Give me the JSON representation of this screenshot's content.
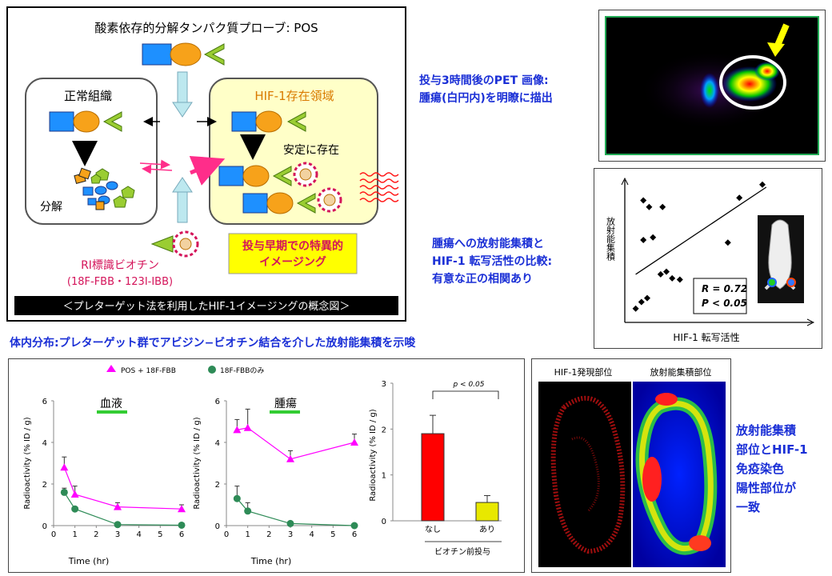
{
  "concept": {
    "probe_title": "酸素依存的分解タンパク質プローブ: POS",
    "normal_tissue": "正常組織",
    "hif_region": "HIF-1存在領域",
    "stable": "安定に存在",
    "degradation": "分解",
    "ri_label_line1": "RI標識ビオチン",
    "ri_label_line2": "(18F-FBB・123I-IBB)",
    "early_imaging_line1": "投与早期での特異的",
    "early_imaging_line2": "イメージング",
    "banner": "＜プレターゲット法を利用したHIF-1イメージングの概念図＞"
  },
  "pet_caption": [
    "投与3時間後のPET 画像:",
    "腫瘍(白円内)を明瞭に描出"
  ],
  "correlation_caption": [
    "腫瘍への放射能集積と",
    "HIF-1 転写活性の比較:",
    "有意な正の相関あり"
  ],
  "biodist_heading": "体内分布:プレターゲット群でアビジン−ビオチン結合を介した放射能集積を示唆",
  "staining_caption": [
    "放射能集積",
    "部位とHIF-1",
    "免疫染色",
    "陽性部位が",
    "一致"
  ],
  "staining_labels": {
    "left": "HIF-1発現部位",
    "right": "放射能集積部位"
  },
  "colors": {
    "magenta": "#ff00ff",
    "green": "#2e8b57",
    "accent_blue": "#1a2fd6",
    "banner_yellow": "#ffff00"
  },
  "chart_data": [
    {
      "type": "scatter",
      "xlabel": "HIF-1 転写活性",
      "ylabel": "放射能集積",
      "x": [
        0.04,
        0.07,
        0.1,
        0.08,
        0.13,
        0.17,
        0.2,
        0.23,
        0.27,
        0.08,
        0.11,
        0.18,
        0.52,
        0.58,
        0.7
      ],
      "y": [
        0.08,
        0.13,
        0.16,
        0.6,
        0.62,
        0.34,
        0.36,
        0.31,
        0.3,
        0.9,
        0.85,
        0.85,
        0.58,
        0.92,
        1.02
      ],
      "fit_line": [
        [
          0.04,
          0.34
        ],
        [
          0.72,
          1.0
        ]
      ],
      "stats": [
        "R = 0.72",
        "P < 0.05"
      ]
    },
    {
      "type": "line",
      "title": "血液",
      "xlabel": "Time (hr)",
      "ylabel": "Radioactivity (% ID / g)",
      "xlim": [
        0,
        6
      ],
      "ylim": [
        0,
        6
      ],
      "xticks": [
        "0",
        "1",
        "2",
        "3",
        "4",
        "5",
        "6"
      ],
      "yticks": [
        "0",
        "2",
        "4",
        "6"
      ],
      "series": [
        {
          "name": "POS + 18F-FBB",
          "x": [
            0.5,
            1,
            3,
            6
          ],
          "values": [
            2.8,
            1.5,
            0.9,
            0.8
          ],
          "err": [
            0.5,
            0.4,
            0.2,
            0.2
          ]
        },
        {
          "name": "18F-FBBのみ",
          "x": [
            0.5,
            1,
            3,
            6
          ],
          "values": [
            1.6,
            0.8,
            0.05,
            0.02
          ],
          "err": [
            0.2,
            0.1,
            0.03,
            0.02
          ]
        }
      ]
    },
    {
      "type": "line",
      "title": "腫瘍",
      "xlabel": "Time (hr)",
      "ylabel": "Radioactivity (% ID / g)",
      "xlim": [
        0,
        6
      ],
      "ylim": [
        0,
        6
      ],
      "xticks": [
        "0",
        "1",
        "2",
        "3",
        "4",
        "5",
        "6"
      ],
      "yticks": [
        "0",
        "2",
        "4",
        "6"
      ],
      "series": [
        {
          "name": "POS + 18F-FBB",
          "x": [
            0.5,
            1,
            3,
            6
          ],
          "values": [
            4.6,
            4.7,
            3.2,
            4.0
          ],
          "err": [
            0.5,
            0.9,
            0.4,
            0.4
          ]
        },
        {
          "name": "18F-FBBのみ",
          "x": [
            0.5,
            1,
            3,
            6
          ],
          "values": [
            1.3,
            0.7,
            0.1,
            0.0
          ],
          "err": [
            0.6,
            0.4,
            0.05,
            0.02
          ]
        }
      ]
    },
    {
      "type": "bar",
      "xlabel": "ビオチン前投与",
      "ylabel": "Radioactivity (% ID / g)",
      "ylim": [
        0,
        3
      ],
      "yticks": [
        "0",
        "1",
        "2",
        "3"
      ],
      "categories": [
        "なし",
        "あり"
      ],
      "values": [
        1.9,
        0.4
      ],
      "err": [
        0.4,
        0.15
      ],
      "colors": [
        "#ff0000",
        "#e8e800"
      ],
      "annotation": "p < 0.05"
    }
  ]
}
